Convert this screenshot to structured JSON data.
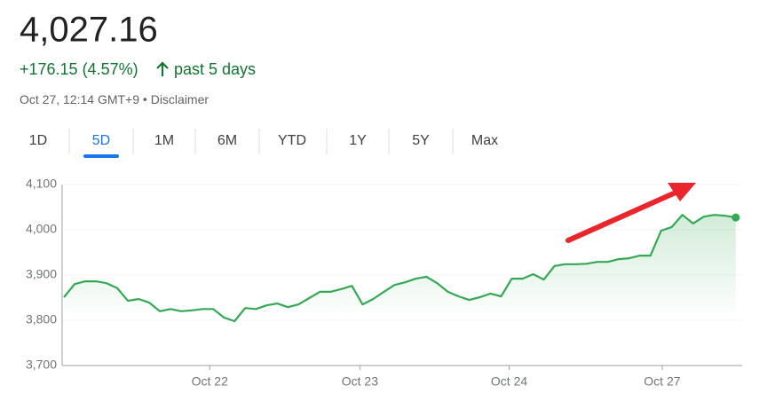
{
  "header": {
    "price": "4,027.16",
    "change": "+176.15 (4.57%)",
    "period": "past 5 days",
    "timestamp": "Oct 27, 12:14 GMT+9",
    "disclaimer": "Disclaimer"
  },
  "tabs": {
    "items": [
      "1D",
      "5D",
      "1M",
      "6M",
      "YTD",
      "1Y",
      "5Y",
      "Max"
    ],
    "active": 1
  },
  "chart_data": {
    "type": "line",
    "color": "#34a853",
    "values": [
      3851,
      3880,
      3886,
      3886,
      3882,
      3871,
      3843,
      3847,
      3839,
      3820,
      3825,
      3820,
      3822,
      3825,
      3825,
      3806,
      3798,
      3827,
      3825,
      3833,
      3837,
      3829,
      3835,
      3849,
      3863,
      3863,
      3869,
      3876,
      3835,
      3847,
      3863,
      3878,
      3884,
      3892,
      3896,
      3882,
      3863,
      3853,
      3845,
      3851,
      3859,
      3853,
      3892,
      3892,
      3902,
      3890,
      3920,
      3924,
      3924,
      3925,
      3929,
      3929,
      3935,
      3937,
      3943,
      3943,
      3998,
      4006,
      4033,
      4014,
      4029,
      4033,
      4031,
      4027.16
    ],
    "xlim": [
      -0.17,
      63.6
    ],
    "xticks": [
      {
        "value": 13.67,
        "label": "Oct 22"
      },
      {
        "value": 27.75,
        "label": "Oct 23"
      },
      {
        "value": 41.75,
        "label": "Oct 24"
      },
      {
        "value": 56.1,
        "label": "Oct 27"
      }
    ],
    "ylim": [
      3700,
      4100
    ],
    "yticks": [
      {
        "value": 3700,
        "label": "3,700"
      },
      {
        "value": 3800,
        "label": "3,800"
      },
      {
        "value": 3900,
        "label": "3,900"
      },
      {
        "value": 4000,
        "label": "4,000"
      },
      {
        "value": 4100,
        "label": "4,100"
      }
    ],
    "grid": true
  }
}
